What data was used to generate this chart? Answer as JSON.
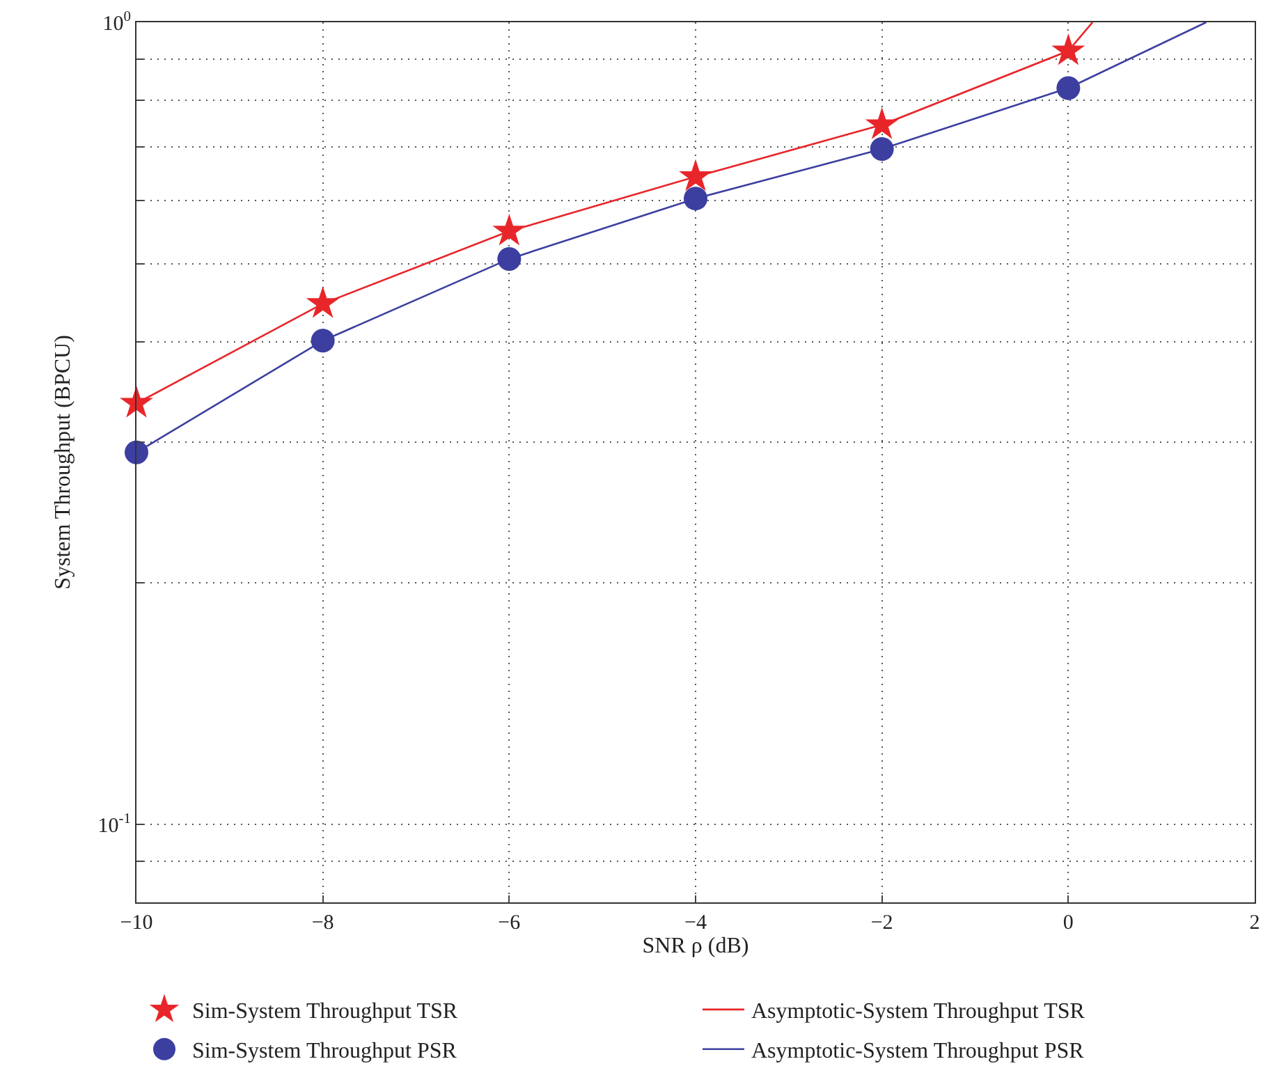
{
  "chart_data": {
    "type": "line",
    "xlabel": "SNR ρ (dB)",
    "ylabel": "System Throughput (BPCU)",
    "log": "y",
    "grid": true,
    "legend": "bottom",
    "xlim": [
      -10,
      2
    ],
    "xticks": [
      {
        "value": -10,
        "label": "−10"
      },
      {
        "value": -8,
        "label": "−8"
      },
      {
        "value": -6,
        "label": "−6"
      },
      {
        "value": -4,
        "label": "−4"
      },
      {
        "value": -2,
        "label": "−2"
      },
      0,
      2
    ],
    "ylim": [
      0.08,
      1
    ],
    "yticks": [
      {
        "value": 0.08,
        "label": null
      },
      {
        "value": 0.09,
        "label": null
      },
      {
        "value": 0.1,
        "label": "10$^{-1}$"
      },
      {
        "value": 0.2,
        "label": null
      },
      {
        "value": 0.3,
        "label": null
      },
      {
        "value": 0.4,
        "label": null
      },
      {
        "value": 0.5,
        "label": null
      },
      {
        "value": 0.6,
        "label": null
      },
      {
        "value": 0.7,
        "label": null
      },
      {
        "value": 0.8,
        "label": null
      },
      {
        "value": 0.9,
        "label": null
      },
      {
        "value": 1,
        "label": "10$^{0}$"
      }
    ],
    "series": [
      {
        "name": "Sim-System Throughput TSR",
        "type": "scatter",
        "marker": "star",
        "color": "#e8262a",
        "x": [
          -10,
          -8,
          -6,
          -4,
          -2,
          0
        ],
        "values": [
          0.335,
          0.446,
          0.549,
          0.642,
          0.745,
          0.921
        ]
      },
      {
        "name": "Asymptotic-System Throughput TSR",
        "marker": "none",
        "color": "#e8262a",
        "x": [
          -10,
          -8,
          -6,
          -4,
          -2,
          0,
          0.26
        ],
        "values": [
          0.335,
          0.446,
          0.549,
          0.642,
          0.745,
          0.921,
          1
        ]
      },
      {
        "name": "Sim-System Throughput PSR",
        "type": "scatter",
        "marker": "circle",
        "color": "#3c3fa0",
        "x": [
          -10,
          -8,
          -6,
          -4,
          -2,
          0
        ],
        "values": [
          0.291,
          0.401,
          0.507,
          0.603,
          0.695,
          0.828
        ]
      },
      {
        "name": "Asymptotic-System Throughput PSR",
        "marker": "none",
        "color": "#3c3fa0",
        "x": [
          -10,
          -8,
          -6,
          -4,
          -2,
          0,
          1.48
        ],
        "values": [
          0.291,
          0.401,
          0.507,
          0.603,
          0.695,
          0.828,
          1
        ]
      }
    ]
  }
}
